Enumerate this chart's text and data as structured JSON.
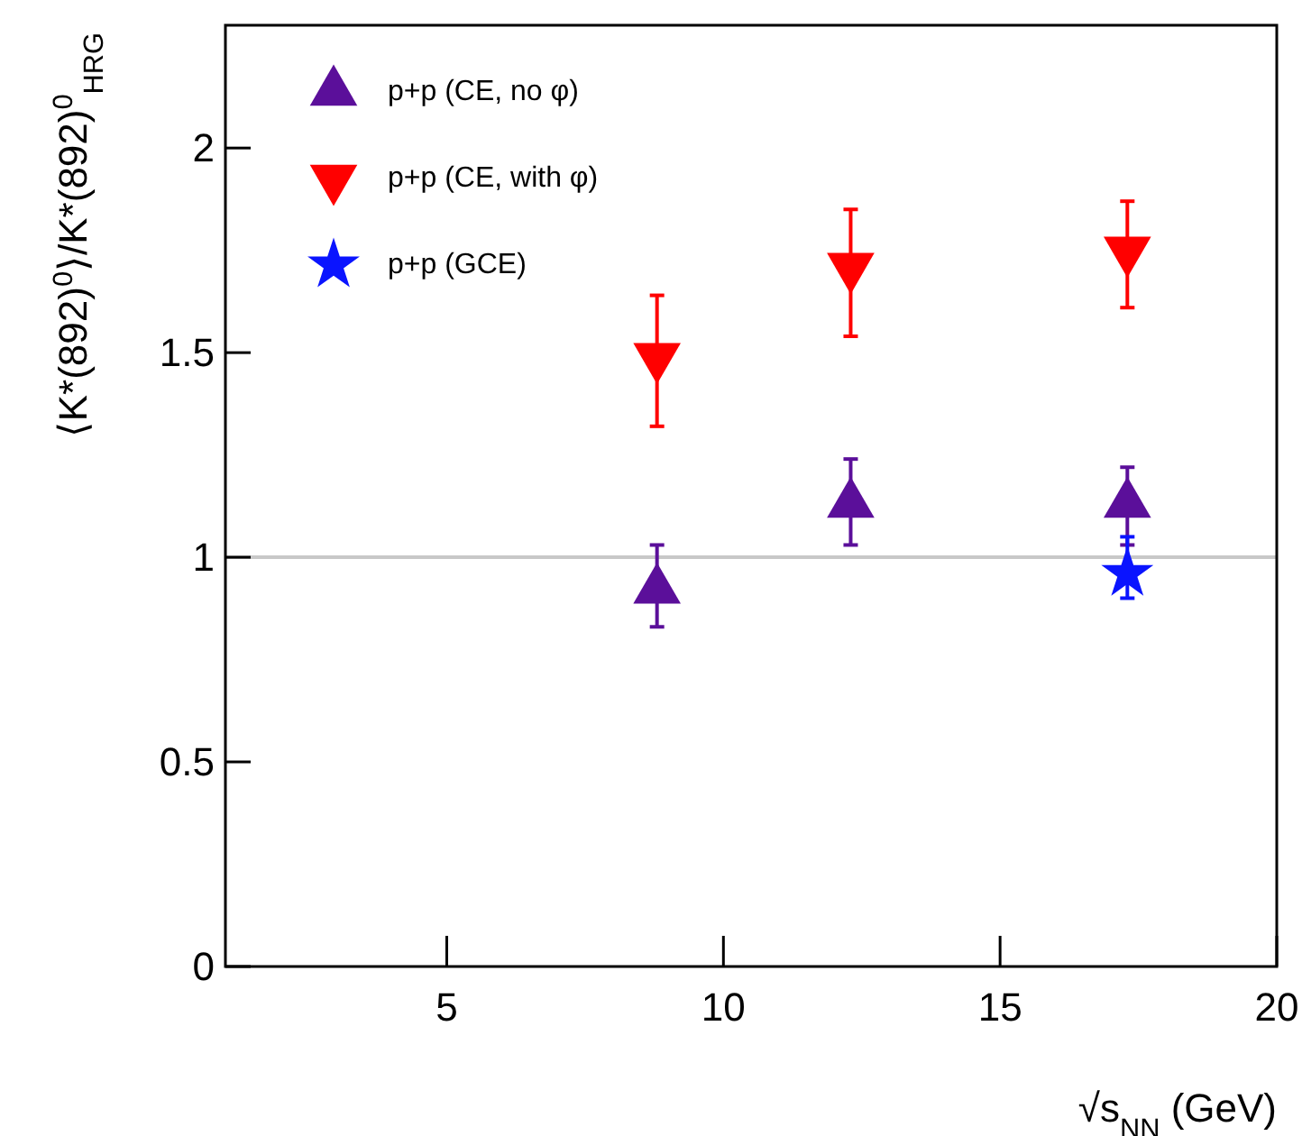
{
  "chart_data": {
    "type": "scatter",
    "xlabel": "√s$_{NN}$ (GeV)",
    "ylabel": "⟨K*(892)$^{0}$⟩/K*(892)$^{0}$$_{HRG}$",
    "xlim": [
      1,
      20
    ],
    "xticks": [
      5,
      10,
      15,
      20
    ],
    "ylim": [
      0,
      2.3
    ],
    "yticks": [
      0,
      0.5,
      1,
      1.5,
      2
    ],
    "grid": false,
    "legend": "top left",
    "ref_lines": [
      {
        "axis": "y",
        "value": 1,
        "color": "#c8c8c8"
      }
    ],
    "series": [
      {
        "name": "p+p (CE, no φ)",
        "color": "#5b0f9a",
        "marker": "triangle",
        "x": [
          8.8,
          12.3,
          17.3
        ],
        "values": [
          0.92,
          1.13,
          1.13
        ],
        "errors": [
          [
            0.83,
            1.03
          ],
          [
            1.03,
            1.24
          ],
          [
            1.03,
            1.22
          ]
        ]
      },
      {
        "name": "p+p (CE, with φ)",
        "color": "#ff0000",
        "marker": "triangle-down",
        "x": [
          8.8,
          12.3,
          17.3
        ],
        "values": [
          1.49,
          1.71,
          1.75
        ],
        "errors": [
          [
            1.32,
            1.64
          ],
          [
            1.54,
            1.85
          ],
          [
            1.61,
            1.87
          ]
        ]
      },
      {
        "name": "p+p (GCE)",
        "color": "#0a14ff",
        "marker": "star",
        "x": [
          17.3
        ],
        "values": [
          0.96
        ],
        "errors": [
          [
            0.9,
            1.05
          ]
        ]
      }
    ]
  }
}
